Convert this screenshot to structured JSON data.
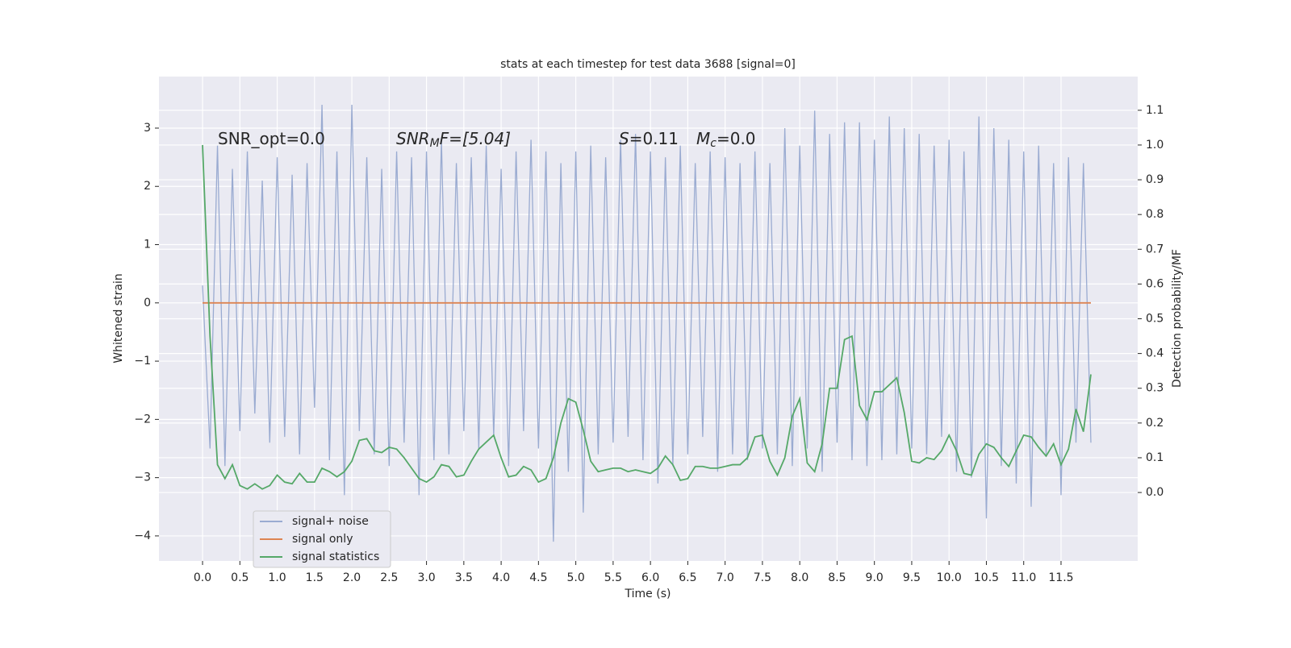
{
  "chart_data": {
    "type": "line",
    "title": "stats at each timestep for test data 3688 [signal=0]",
    "x_label": "Time (s)",
    "y_label": "Whitened strain",
    "y2_label": "Detection probability/MF",
    "annotations": [
      [
        "SNR_opt=0.0"
      ],
      [
        "SNR",
        "M",
        "F=[5.04]"
      ],
      [
        "S",
        "=0.11",
        "M",
        "c",
        "=0.0"
      ]
    ],
    "legend": "lower left",
    "grid": true,
    "xlim": [
      -0.584,
      12.527
    ],
    "ylim": [
      -4.43,
      3.885
    ],
    "y2lim": [
      -0.197,
      1.197
    ],
    "xticks": [
      {
        "value": 0,
        "label": "0.0"
      },
      0.5,
      {
        "value": 1,
        "label": "1.0"
      },
      1.5,
      {
        "value": 2,
        "label": "2.0"
      },
      2.5,
      {
        "value": 3,
        "label": "3.0"
      },
      3.5,
      {
        "value": 4,
        "label": "4.0"
      },
      4.5,
      {
        "value": 5,
        "label": "5.0"
      },
      5.5,
      {
        "value": 6,
        "label": "6.0"
      },
      6.5,
      {
        "value": 7,
        "label": "7.0"
      },
      7.5,
      {
        "value": 8,
        "label": "8.0"
      },
      8.5,
      {
        "value": 9,
        "label": "9.0"
      },
      9.5,
      {
        "value": 10,
        "label": "10.0"
      },
      10.5,
      {
        "value": 11,
        "label": "11.0"
      },
      11.5
    ],
    "yticks": [
      {
        "value": -4,
        "label": "−4"
      },
      {
        "value": -3,
        "label": "−3"
      },
      {
        "value": -2,
        "label": "−2"
      },
      {
        "value": -1,
        "label": "−1"
      },
      0,
      1,
      2,
      3
    ],
    "y2ticks": [
      {
        "value": 0,
        "label": "0.0"
      },
      0.1,
      0.2,
      0.3,
      0.4,
      0.5,
      0.6,
      0.7,
      0.8,
      0.9,
      {
        "value": 1,
        "label": "1.0"
      },
      1.1
    ],
    "x": [
      0.0,
      0.1,
      0.2,
      0.3,
      0.4,
      0.5,
      0.6,
      0.7,
      0.8,
      0.9,
      1.0,
      1.1,
      1.2,
      1.3,
      1.4,
      1.5,
      1.6,
      1.7,
      1.8,
      1.9,
      2.0,
      2.1,
      2.2,
      2.3,
      2.4,
      2.5,
      2.6,
      2.7,
      2.8,
      2.9,
      3.0,
      3.1,
      3.2,
      3.3,
      3.4,
      3.5,
      3.6,
      3.7,
      3.8,
      3.9,
      4.0,
      4.1,
      4.2,
      4.3,
      4.4,
      4.5,
      4.6,
      4.7,
      4.8,
      4.9,
      5.0,
      5.1,
      5.2,
      5.3,
      5.4,
      5.5,
      5.6,
      5.7,
      5.8,
      5.9,
      6.0,
      6.1,
      6.2,
      6.3,
      6.4,
      6.5,
      6.6,
      6.7,
      6.8,
      6.9,
      7.0,
      7.1,
      7.2,
      7.3,
      7.4,
      7.5,
      7.6,
      7.7,
      7.8,
      7.9,
      8.0,
      8.1,
      8.2,
      8.3,
      8.4,
      8.5,
      8.6,
      8.7,
      8.8,
      8.9,
      9.0,
      9.1,
      9.2,
      9.3,
      9.4,
      9.5,
      9.6,
      9.7,
      9.8,
      9.9,
      10.0,
      10.1,
      10.2,
      10.3,
      10.4,
      10.5,
      10.6,
      10.7,
      10.8,
      10.9,
      11.0,
      11.1,
      11.2,
      11.3,
      11.4,
      11.5,
      11.6,
      11.7,
      11.8,
      11.9
    ],
    "series": [
      {
        "name": "signal+ noise",
        "color": "#9aabd1",
        "values": [
          0.3,
          -2.5,
          2.7,
          -2.8,
          2.3,
          -2.2,
          2.6,
          -1.9,
          2.1,
          -2.4,
          2.5,
          -2.3,
          2.2,
          -2.6,
          2.4,
          -1.8,
          3.4,
          -2.7,
          2.6,
          -3.3,
          3.4,
          -2.2,
          2.5,
          -2.6,
          2.3,
          -2.8,
          2.6,
          -2.4,
          2.5,
          -3.3,
          2.6,
          -2.7,
          2.8,
          -2.6,
          2.4,
          -2.2,
          2.5,
          -2.5,
          2.7,
          -2.3,
          2.3,
          -2.8,
          2.6,
          -2.2,
          2.8,
          -2.5,
          2.6,
          -4.1,
          2.4,
          -2.9,
          2.6,
          -3.6,
          2.7,
          -2.6,
          2.5,
          -2.4,
          2.8,
          -2.3,
          2.9,
          -2.7,
          2.6,
          -3.1,
          2.5,
          -2.8,
          2.7,
          -2.6,
          2.4,
          -2.3,
          2.6,
          -2.9,
          2.5,
          -2.6,
          2.4,
          -2.7,
          2.6,
          -2.5,
          2.4,
          -2.6,
          3.0,
          -2.8,
          2.7,
          -2.5,
          3.3,
          -2.9,
          2.9,
          -2.4,
          3.1,
          -2.7,
          3.1,
          -2.8,
          2.8,
          -2.7,
          3.2,
          -2.6,
          3.0,
          -2.5,
          2.9,
          -2.6,
          2.7,
          -2.3,
          2.8,
          -2.9,
          2.6,
          -3.0,
          3.2,
          -3.7,
          3.0,
          -2.8,
          2.8,
          -3.1,
          2.6,
          -3.5,
          2.7,
          -2.6,
          2.4,
          -3.3,
          2.5,
          -2.4,
          2.4,
          -2.4
        ]
      },
      {
        "name": "signal only",
        "color": "#dd8452",
        "values": [
          0,
          0,
          0,
          0,
          0,
          0,
          0,
          0,
          0,
          0,
          0,
          0,
          0,
          0,
          0,
          0,
          0,
          0,
          0,
          0,
          0,
          0,
          0,
          0,
          0,
          0,
          0,
          0,
          0,
          0,
          0,
          0,
          0,
          0,
          0,
          0,
          0,
          0,
          0,
          0,
          0,
          0,
          0,
          0,
          0,
          0,
          0,
          0,
          0,
          0,
          0,
          0,
          0,
          0,
          0,
          0,
          0,
          0,
          0,
          0,
          0,
          0,
          0,
          0,
          0,
          0,
          0,
          0,
          0,
          0,
          0,
          0,
          0,
          0,
          0,
          0,
          0,
          0,
          0,
          0,
          0,
          0,
          0,
          0,
          0,
          0,
          0,
          0,
          0,
          0,
          0,
          0,
          0,
          0,
          0,
          0,
          0,
          0,
          0,
          0,
          0,
          0,
          0,
          0,
          0,
          0,
          0,
          0,
          0,
          0,
          0,
          0,
          0,
          0,
          0,
          0,
          0,
          0,
          0,
          0
        ]
      },
      {
        "name": "signal statistics",
        "color": "#55a868",
        "axis": "y2",
        "values": [
          1.0,
          0.45,
          0.08,
          0.04,
          0.08,
          0.02,
          0.01,
          0.025,
          0.01,
          0.02,
          0.05,
          0.03,
          0.025,
          0.055,
          0.03,
          0.03,
          0.07,
          0.06,
          0.045,
          0.06,
          0.09,
          0.15,
          0.155,
          0.12,
          0.115,
          0.13,
          0.125,
          0.1,
          0.07,
          0.04,
          0.03,
          0.045,
          0.08,
          0.075,
          0.045,
          0.05,
          0.09,
          0.125,
          0.145,
          0.165,
          0.1,
          0.045,
          0.05,
          0.075,
          0.065,
          0.03,
          0.04,
          0.1,
          0.2,
          0.27,
          0.26,
          0.18,
          0.09,
          0.06,
          0.065,
          0.07,
          0.07,
          0.06,
          0.065,
          0.06,
          0.055,
          0.07,
          0.105,
          0.08,
          0.035,
          0.04,
          0.075,
          0.075,
          0.07,
          0.07,
          0.075,
          0.08,
          0.08,
          0.1,
          0.16,
          0.165,
          0.09,
          0.05,
          0.1,
          0.22,
          0.27,
          0.085,
          0.06,
          0.14,
          0.3,
          0.3,
          0.44,
          0.45,
          0.25,
          0.21,
          0.29,
          0.29,
          0.31,
          0.33,
          0.23,
          0.09,
          0.085,
          0.1,
          0.095,
          0.12,
          0.165,
          0.12,
          0.055,
          0.05,
          0.11,
          0.14,
          0.13,
          0.1,
          0.075,
          0.12,
          0.165,
          0.16,
          0.13,
          0.105,
          0.14,
          0.08,
          0.125,
          0.24,
          0.175,
          0.34
        ]
      }
    ]
  }
}
